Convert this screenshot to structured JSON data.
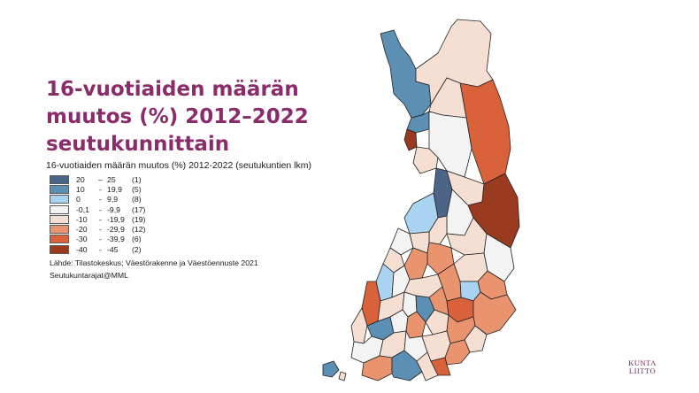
{
  "title": "16-vuotiaiden määrän muutos (%) 2012–2022 seutukunnittain",
  "legend": {
    "title": "16-vuotiaiden määrän muutos (%) 2012-2022 (seutukuntien lkm)",
    "classes": [
      {
        "from": "20",
        "dash": "–",
        "to": "25",
        "count": "(1)",
        "color": "#4a6585"
      },
      {
        "from": "10",
        "dash": "-",
        "to": "19,9",
        "count": "(5)",
        "color": "#5b8fb3"
      },
      {
        "from": "0",
        "dash": "-",
        "to": "9,9",
        "count": "(8)",
        "color": "#a9d3f0"
      },
      {
        "from": "-0,1",
        "dash": "-",
        "to": "-9,9",
        "count": "(17)",
        "color": "#f3f3f3"
      },
      {
        "from": "-10",
        "dash": "-",
        "to": "-19,9",
        "count": "(19)",
        "color": "#f5dfd3"
      },
      {
        "from": "-20",
        "dash": "-",
        "to": "-29,9",
        "count": "(12)",
        "color": "#e9946f"
      },
      {
        "from": "-30",
        "dash": "-",
        "to": "-39,9",
        "count": "(6)",
        "color": "#d9623a"
      },
      {
        "from": "-40",
        "dash": "-",
        "to": "-45",
        "count": "(2)",
        "color": "#9a3a1f"
      }
    ]
  },
  "source": {
    "line1": "Lähde: Tilastokeskus; Väestörakenne ja Väestöennuste 2021",
    "line2": "Seutukuntarajat@MML"
  },
  "logo": {
    "line1": "KUNTA",
    "line2": "LIITTO"
  }
}
